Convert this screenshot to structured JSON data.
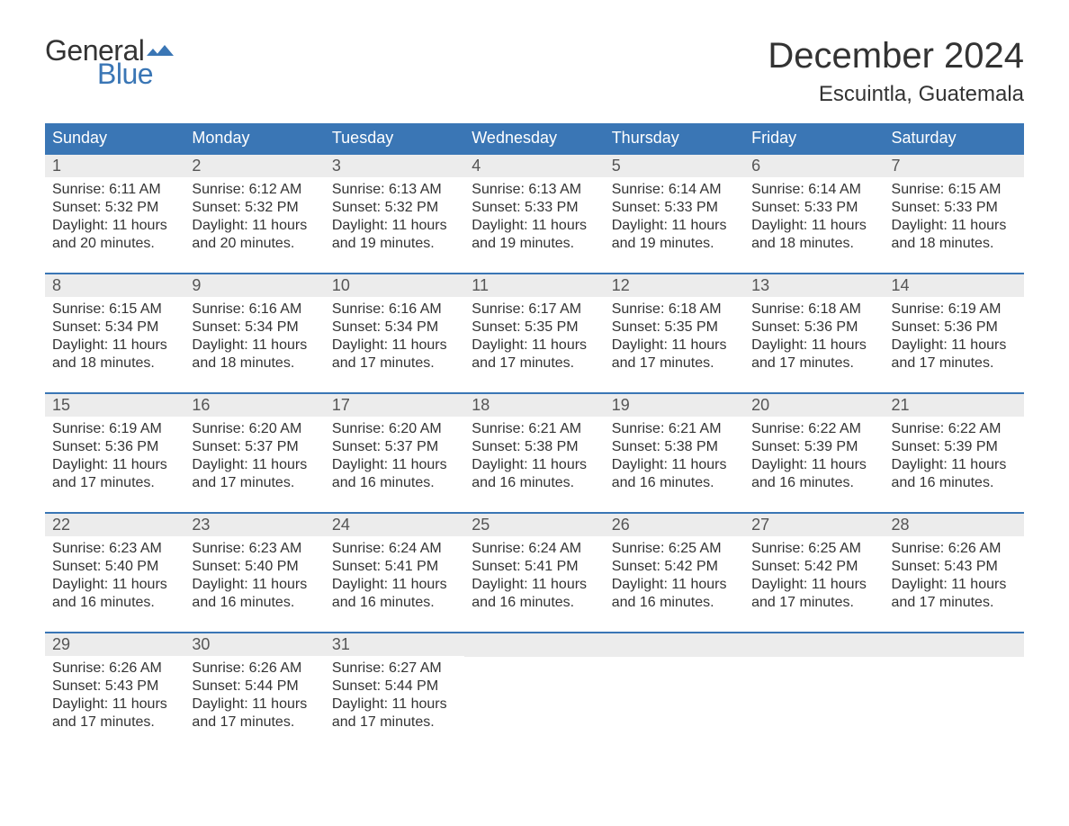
{
  "logo": {
    "word1": "General",
    "word2": "Blue",
    "word1_color": "#333333",
    "word2_color": "#3a76b5",
    "flag_color": "#3a76b5"
  },
  "title": "December 2024",
  "location": "Escuintla, Guatemala",
  "colors": {
    "header_bg": "#3a76b5",
    "header_text": "#ffffff",
    "daynum_bg": "#ececec",
    "daynum_text": "#555555",
    "body_text": "#333333",
    "week_border": "#3a76b5",
    "page_bg": "#ffffff"
  },
  "fonts": {
    "title_size": 40,
    "location_size": 24,
    "header_size": 18,
    "daynum_size": 18,
    "body_size": 16
  },
  "layout": {
    "columns": 7,
    "rows": 5
  },
  "day_headers": [
    "Sunday",
    "Monday",
    "Tuesday",
    "Wednesday",
    "Thursday",
    "Friday",
    "Saturday"
  ],
  "labels": {
    "sunrise": "Sunrise:",
    "sunset": "Sunset:",
    "daylight": "Daylight:"
  },
  "weeks": [
    [
      {
        "n": 1,
        "sunrise": "6:11 AM",
        "sunset": "5:32 PM",
        "daylight": "11 hours and 20 minutes."
      },
      {
        "n": 2,
        "sunrise": "6:12 AM",
        "sunset": "5:32 PM",
        "daylight": "11 hours and 20 minutes."
      },
      {
        "n": 3,
        "sunrise": "6:13 AM",
        "sunset": "5:32 PM",
        "daylight": "11 hours and 19 minutes."
      },
      {
        "n": 4,
        "sunrise": "6:13 AM",
        "sunset": "5:33 PM",
        "daylight": "11 hours and 19 minutes."
      },
      {
        "n": 5,
        "sunrise": "6:14 AM",
        "sunset": "5:33 PM",
        "daylight": "11 hours and 19 minutes."
      },
      {
        "n": 6,
        "sunrise": "6:14 AM",
        "sunset": "5:33 PM",
        "daylight": "11 hours and 18 minutes."
      },
      {
        "n": 7,
        "sunrise": "6:15 AM",
        "sunset": "5:33 PM",
        "daylight": "11 hours and 18 minutes."
      }
    ],
    [
      {
        "n": 8,
        "sunrise": "6:15 AM",
        "sunset": "5:34 PM",
        "daylight": "11 hours and 18 minutes."
      },
      {
        "n": 9,
        "sunrise": "6:16 AM",
        "sunset": "5:34 PM",
        "daylight": "11 hours and 18 minutes."
      },
      {
        "n": 10,
        "sunrise": "6:16 AM",
        "sunset": "5:34 PM",
        "daylight": "11 hours and 17 minutes."
      },
      {
        "n": 11,
        "sunrise": "6:17 AM",
        "sunset": "5:35 PM",
        "daylight": "11 hours and 17 minutes."
      },
      {
        "n": 12,
        "sunrise": "6:18 AM",
        "sunset": "5:35 PM",
        "daylight": "11 hours and 17 minutes."
      },
      {
        "n": 13,
        "sunrise": "6:18 AM",
        "sunset": "5:36 PM",
        "daylight": "11 hours and 17 minutes."
      },
      {
        "n": 14,
        "sunrise": "6:19 AM",
        "sunset": "5:36 PM",
        "daylight": "11 hours and 17 minutes."
      }
    ],
    [
      {
        "n": 15,
        "sunrise": "6:19 AM",
        "sunset": "5:36 PM",
        "daylight": "11 hours and 17 minutes."
      },
      {
        "n": 16,
        "sunrise": "6:20 AM",
        "sunset": "5:37 PM",
        "daylight": "11 hours and 17 minutes."
      },
      {
        "n": 17,
        "sunrise": "6:20 AM",
        "sunset": "5:37 PM",
        "daylight": "11 hours and 16 minutes."
      },
      {
        "n": 18,
        "sunrise": "6:21 AM",
        "sunset": "5:38 PM",
        "daylight": "11 hours and 16 minutes."
      },
      {
        "n": 19,
        "sunrise": "6:21 AM",
        "sunset": "5:38 PM",
        "daylight": "11 hours and 16 minutes."
      },
      {
        "n": 20,
        "sunrise": "6:22 AM",
        "sunset": "5:39 PM",
        "daylight": "11 hours and 16 minutes."
      },
      {
        "n": 21,
        "sunrise": "6:22 AM",
        "sunset": "5:39 PM",
        "daylight": "11 hours and 16 minutes."
      }
    ],
    [
      {
        "n": 22,
        "sunrise": "6:23 AM",
        "sunset": "5:40 PM",
        "daylight": "11 hours and 16 minutes."
      },
      {
        "n": 23,
        "sunrise": "6:23 AM",
        "sunset": "5:40 PM",
        "daylight": "11 hours and 16 minutes."
      },
      {
        "n": 24,
        "sunrise": "6:24 AM",
        "sunset": "5:41 PM",
        "daylight": "11 hours and 16 minutes."
      },
      {
        "n": 25,
        "sunrise": "6:24 AM",
        "sunset": "5:41 PM",
        "daylight": "11 hours and 16 minutes."
      },
      {
        "n": 26,
        "sunrise": "6:25 AM",
        "sunset": "5:42 PM",
        "daylight": "11 hours and 16 minutes."
      },
      {
        "n": 27,
        "sunrise": "6:25 AM",
        "sunset": "5:42 PM",
        "daylight": "11 hours and 17 minutes."
      },
      {
        "n": 28,
        "sunrise": "6:26 AM",
        "sunset": "5:43 PM",
        "daylight": "11 hours and 17 minutes."
      }
    ],
    [
      {
        "n": 29,
        "sunrise": "6:26 AM",
        "sunset": "5:43 PM",
        "daylight": "11 hours and 17 minutes."
      },
      {
        "n": 30,
        "sunrise": "6:26 AM",
        "sunset": "5:44 PM",
        "daylight": "11 hours and 17 minutes."
      },
      {
        "n": 31,
        "sunrise": "6:27 AM",
        "sunset": "5:44 PM",
        "daylight": "11 hours and 17 minutes."
      },
      null,
      null,
      null,
      null
    ]
  ]
}
